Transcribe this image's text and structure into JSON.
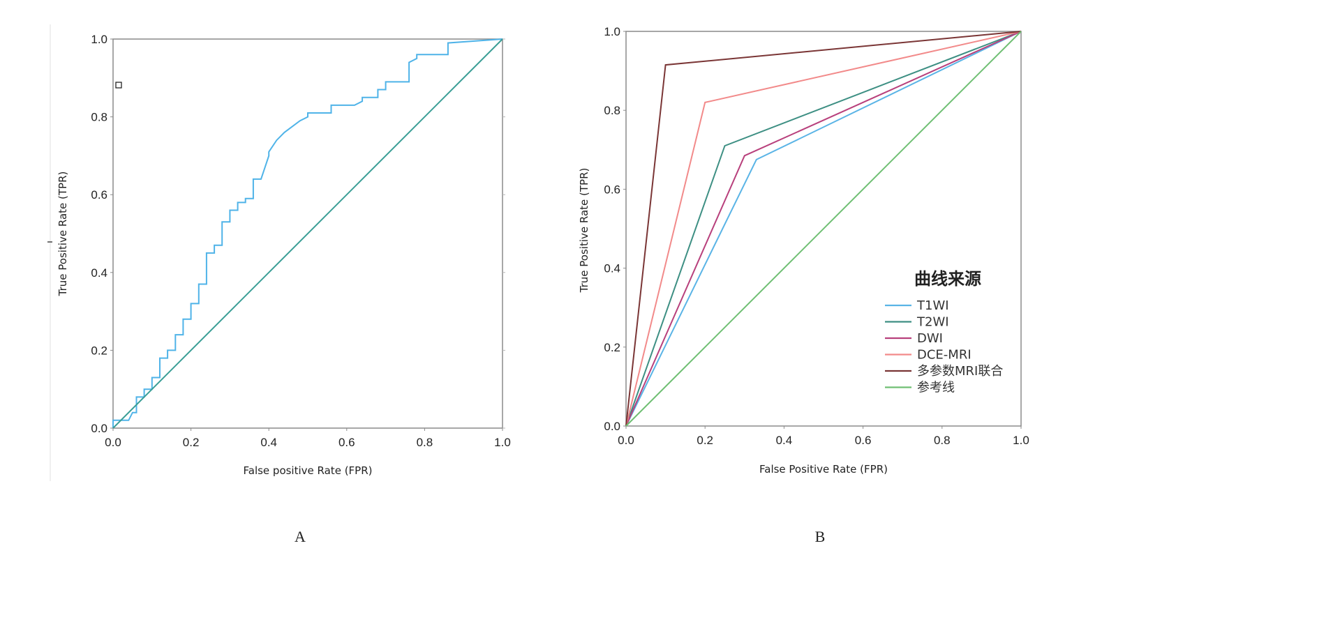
{
  "chart_data": [
    {
      "type": "line",
      "panel_label": "A",
      "xlabel": "False positive Rate (FPR)",
      "ylabel": "True Positive Rate (TPR)",
      "xlim": [
        0,
        1
      ],
      "ylim": [
        0,
        1
      ],
      "xticks": [
        "0.0",
        "0.2",
        "0.4",
        "0.6",
        "0.8",
        "1.0"
      ],
      "yticks": [
        "0.0",
        "0.2",
        "0.4",
        "0.6",
        "0.8",
        "1.0"
      ],
      "grid": false,
      "legend": "none",
      "series": [
        {
          "color": "#4fb3e8",
          "x": [
            0,
            0,
            0.02,
            0.04,
            0.05,
            0.06,
            0.06,
            0.08,
            0.08,
            0.1,
            0.1,
            0.12,
            0.12,
            0.14,
            0.14,
            0.16,
            0.16,
            0.18,
            0.18,
            0.2,
            0.2,
            0.22,
            0.22,
            0.24,
            0.24,
            0.26,
            0.26,
            0.28,
            0.28,
            0.3,
            0.3,
            0.32,
            0.32,
            0.34,
            0.34,
            0.36,
            0.36,
            0.38,
            0.4,
            0.4,
            0.42,
            0.44,
            0.44,
            0.48,
            0.5,
            0.5,
            0.54,
            0.56,
            0.56,
            0.62,
            0.64,
            0.64,
            0.68,
            0.68,
            0.7,
            0.7,
            0.76,
            0.76,
            0.78,
            0.78,
            0.86,
            0.86,
            1.0
          ],
          "y": [
            0,
            0.02,
            0.02,
            0.02,
            0.04,
            0.04,
            0.08,
            0.08,
            0.1,
            0.1,
            0.13,
            0.13,
            0.18,
            0.18,
            0.2,
            0.2,
            0.24,
            0.24,
            0.28,
            0.28,
            0.32,
            0.32,
            0.37,
            0.37,
            0.45,
            0.45,
            0.47,
            0.47,
            0.53,
            0.53,
            0.56,
            0.56,
            0.58,
            0.58,
            0.59,
            0.59,
            0.64,
            0.64,
            0.7,
            0.71,
            0.74,
            0.76,
            0.76,
            0.79,
            0.8,
            0.81,
            0.81,
            0.81,
            0.83,
            0.83,
            0.84,
            0.85,
            0.85,
            0.87,
            0.87,
            0.89,
            0.89,
            0.94,
            0.95,
            0.96,
            0.96,
            0.99,
            1.0
          ]
        },
        {
          "color": "#3a9e96",
          "x": [
            0,
            1
          ],
          "y": [
            0,
            1
          ]
        }
      ]
    },
    {
      "type": "line",
      "panel_label": "B",
      "xlabel": "False Positive Rate (FPR)",
      "ylabel": "True Positive Rate (TPR)",
      "xlim": [
        0,
        1
      ],
      "ylim": [
        0,
        1
      ],
      "xticks": [
        "0.0",
        "0.2",
        "0.4",
        "0.6",
        "0.8",
        "1.0"
      ],
      "yticks": [
        "0.0",
        "0.2",
        "0.4",
        "0.6",
        "0.8",
        "1.0"
      ],
      "grid": false,
      "legend_title": "曲线来源",
      "legend": "bottom-right",
      "series": [
        {
          "name": "T1WI",
          "color": "#5ab4e6",
          "x": [
            0,
            0.33,
            1
          ],
          "y": [
            0,
            0.675,
            1
          ]
        },
        {
          "name": "T2WI",
          "color": "#3d8f83",
          "x": [
            0,
            0.25,
            1
          ],
          "y": [
            0,
            0.71,
            1
          ]
        },
        {
          "name": "DWI",
          "color": "#b8407c",
          "x": [
            0,
            0.3,
            1
          ],
          "y": [
            0,
            0.685,
            1
          ]
        },
        {
          "name": "DCE-MRI",
          "color": "#f28a8a",
          "x": [
            0,
            0.2,
            1
          ],
          "y": [
            0,
            0.82,
            1
          ]
        },
        {
          "name": "多参数MRI联合",
          "color": "#7a3535",
          "x": [
            0,
            0.1,
            1
          ],
          "y": [
            0,
            0.915,
            1
          ]
        },
        {
          "name": "参考线",
          "color": "#6fbf73",
          "x": [
            0,
            1
          ],
          "y": [
            0,
            1
          ]
        }
      ]
    }
  ]
}
